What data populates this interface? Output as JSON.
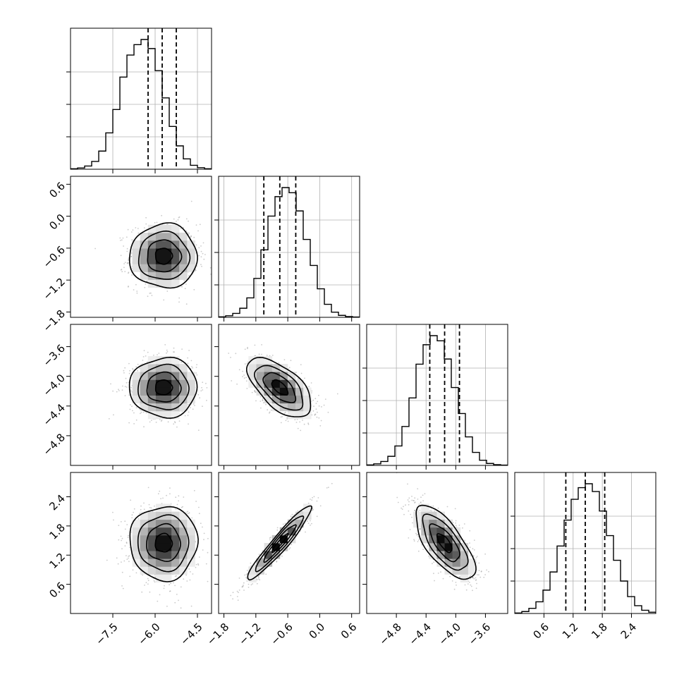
{
  "chart_data": {
    "type": "corner",
    "title": "",
    "grid": true,
    "n_params": 4,
    "parameters": [
      {
        "label": "",
        "range": [
          -9.0,
          -4.0
        ],
        "mean": -5.7,
        "std": 0.6,
        "quantiles": [
          -6.25,
          -5.75,
          -5.25
        ],
        "tick_values": [
          -7.5,
          -6.0,
          -4.5
        ],
        "tick_labels": [
          "−7.5",
          "−6.0",
          "−4.5"
        ],
        "histogram": [
          0.004,
          0.01,
          0.025,
          0.06,
          0.14,
          0.28,
          0.46,
          0.71,
          0.88,
          0.96,
          1.0,
          0.93,
          0.76,
          0.55,
          0.33,
          0.18,
          0.08,
          0.03,
          0.012,
          0.004
        ]
      },
      {
        "label": "",
        "range": [
          -1.9,
          0.75
        ],
        "mean": -0.75,
        "std": 0.3,
        "quantiles": [
          -1.05,
          -0.75,
          -0.45
        ],
        "tick_values": [
          -1.8,
          -1.2,
          -0.6,
          0.0,
          0.6
        ],
        "tick_labels": [
          "−1.8",
          "−1.2",
          "−0.6",
          "0.0",
          "0.6"
        ],
        "histogram": [
          0.004,
          0.012,
          0.03,
          0.07,
          0.15,
          0.3,
          0.52,
          0.78,
          0.93,
          1.0,
          0.96,
          0.82,
          0.6,
          0.4,
          0.22,
          0.1,
          0.04,
          0.015,
          0.006,
          0.002
        ]
      },
      {
        "label": "",
        "range": [
          -5.2,
          -3.3
        ],
        "mean": -4.15,
        "std": 0.2,
        "quantiles": [
          -4.35,
          -4.15,
          -3.95
        ],
        "tick_values": [
          -4.8,
          -4.4,
          -4.0,
          -3.6
        ],
        "tick_labels": [
          "−4.8",
          "−4.4",
          "−4.0",
          "−3.6"
        ],
        "histogram": [
          0.004,
          0.012,
          0.03,
          0.07,
          0.15,
          0.3,
          0.52,
          0.78,
          0.93,
          1.0,
          0.96,
          0.82,
          0.6,
          0.4,
          0.22,
          0.1,
          0.04,
          0.015,
          0.006,
          0.002
        ]
      },
      {
        "label": "",
        "range": [
          0.0,
          2.9
        ],
        "mean": 1.45,
        "std": 0.38,
        "quantiles": [
          1.05,
          1.45,
          1.85
        ],
        "tick_values": [
          0.6,
          1.2,
          1.8,
          2.4
        ],
        "tick_labels": [
          "0.6",
          "1.2",
          "1.8",
          "2.4"
        ],
        "histogram": [
          0.004,
          0.015,
          0.04,
          0.09,
          0.18,
          0.32,
          0.52,
          0.72,
          0.88,
          0.97,
          1.0,
          0.94,
          0.79,
          0.6,
          0.41,
          0.25,
          0.13,
          0.06,
          0.025,
          0.01
        ]
      }
    ],
    "correlations": [
      [
        1.0,
        0.0,
        0.0,
        0.0
      ],
      [
        0.0,
        1.0,
        -0.6,
        0.95
      ],
      [
        0.0,
        -0.6,
        1.0,
        -0.7
      ],
      [
        0.0,
        0.95,
        -0.7,
        1.0
      ]
    ],
    "contour_levels": [
      "0.5σ",
      "1σ",
      "1.5σ",
      "2σ"
    ],
    "line_color": "#000000",
    "grid_color": "#b0b0b0",
    "point_color": "#8c8c8c"
  }
}
